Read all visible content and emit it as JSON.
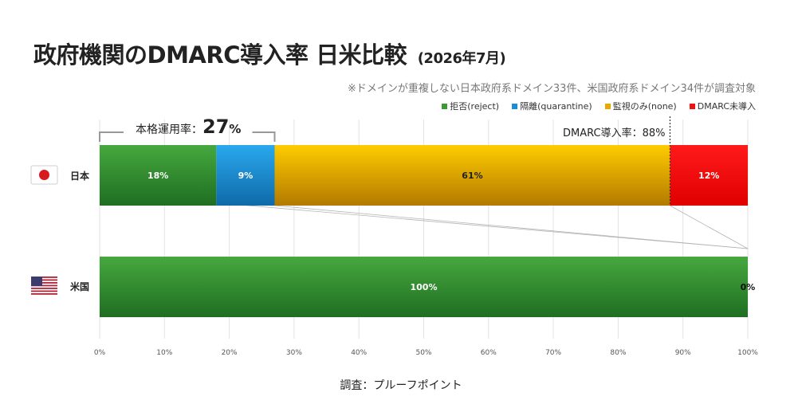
{
  "header": {
    "title": "政府機関のDMARC導入率 日米比較",
    "subtitle": "(2026年7月)",
    "note": "※ドメインが重複しない日本政府系ドメイン33件、米国政府系ドメイン34件が調査対象"
  },
  "legend": [
    {
      "label": "拒否(reject)",
      "color": "#3a9a34"
    },
    {
      "label": "隔離(quarantine)",
      "color": "#1a8fd6"
    },
    {
      "label": "監視のみ(none)",
      "color": "#e8a800"
    },
    {
      "label": "DMARC未導入",
      "color": "#ee1111"
    }
  ],
  "annotations": {
    "core_rate_label": "本格運用率：",
    "core_rate_value": "27",
    "core_rate_unit": "%",
    "dmarc_rate": "DMARC導入率：88%"
  },
  "source": "調査：プルーフポイント",
  "chart_data": {
    "type": "bar",
    "orientation": "horizontal",
    "stacked": true,
    "categories": [
      "日本",
      "米国"
    ],
    "series": [
      {
        "name": "拒否(reject)",
        "values": [
          18,
          100
        ],
        "labels": [
          "18%",
          "100%"
        ],
        "color": "#3a9a34"
      },
      {
        "name": "隔離(quarantine)",
        "values": [
          9,
          0
        ],
        "labels": [
          "9%",
          ""
        ],
        "color": "#1a8fd6"
      },
      {
        "name": "監視のみ(none)",
        "values": [
          61,
          0
        ],
        "labels": [
          "61%",
          ""
        ],
        "color": "#e8a800"
      },
      {
        "name": "DMARC未導入",
        "values": [
          12,
          0
        ],
        "labels": [
          "12%",
          "0%"
        ],
        "color": "#ee1111"
      }
    ],
    "xticks": [
      "0%",
      "10%",
      "20%",
      "30%",
      "40%",
      "50%",
      "60%",
      "70%",
      "80%",
      "90%",
      "100%"
    ],
    "xlim": [
      0,
      100
    ],
    "grid": true
  }
}
